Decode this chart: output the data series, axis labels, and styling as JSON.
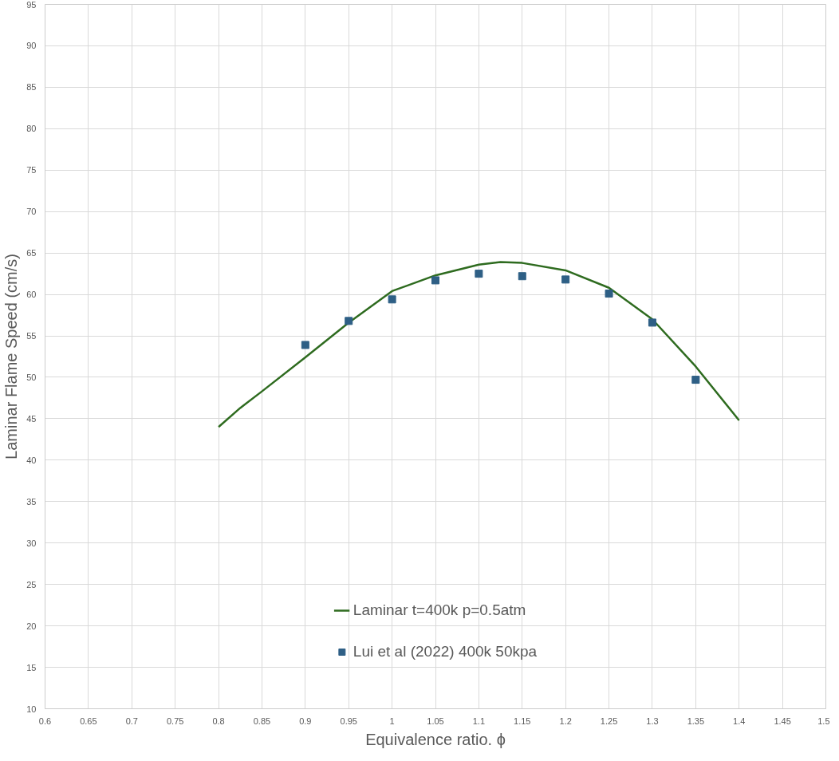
{
  "chart_data": {
    "type": "line",
    "xlabel": "Equivalence ratio. ϕ",
    "ylabel": "Laminar Flame Speed (cm/s)",
    "xlim": [
      0.6,
      1.5
    ],
    "xticks": [
      0.6,
      0.65,
      0.7,
      0.75,
      0.8,
      0.85,
      0.9,
      0.95,
      1,
      1.05,
      1.1,
      1.15,
      1.2,
      1.25,
      1.3,
      1.35,
      1.4,
      1.45,
      1.5
    ],
    "ylim": [
      10,
      95
    ],
    "yticks": [
      10,
      15,
      20,
      25,
      30,
      35,
      40,
      45,
      50,
      55,
      60,
      65,
      70,
      75,
      80,
      85,
      90,
      95
    ],
    "grid": true,
    "legend": "bottom",
    "series": [
      {
        "name": "Laminar t=400k p=0.5atm",
        "color": "#2e6b1f",
        "marker": "none",
        "line_style": "solid",
        "x": [
          0.8,
          0.825,
          0.85,
          0.9,
          0.95,
          1.0,
          1.05,
          1.1,
          1.125,
          1.15,
          1.2,
          1.25,
          1.3,
          1.35,
          1.4
        ],
        "values": [
          44,
          46.3,
          48.3,
          52.4,
          56.6,
          60.4,
          62.3,
          63.6,
          63.9,
          63.8,
          62.9,
          60.8,
          57,
          51.3,
          44.8
        ]
      },
      {
        "name": "Lui et al (2022) 400k 50kpa",
        "type": "scatter",
        "color": "#2e5f85",
        "marker": "square",
        "x": [
          0.9,
          0.95,
          1.0,
          1.05,
          1.1,
          1.15,
          1.2,
          1.25,
          1.3,
          1.35
        ],
        "values": [
          53.9,
          56.8,
          59.4,
          61.7,
          62.5,
          62.2,
          61.8,
          60.1,
          56.6,
          49.7
        ]
      }
    ]
  }
}
